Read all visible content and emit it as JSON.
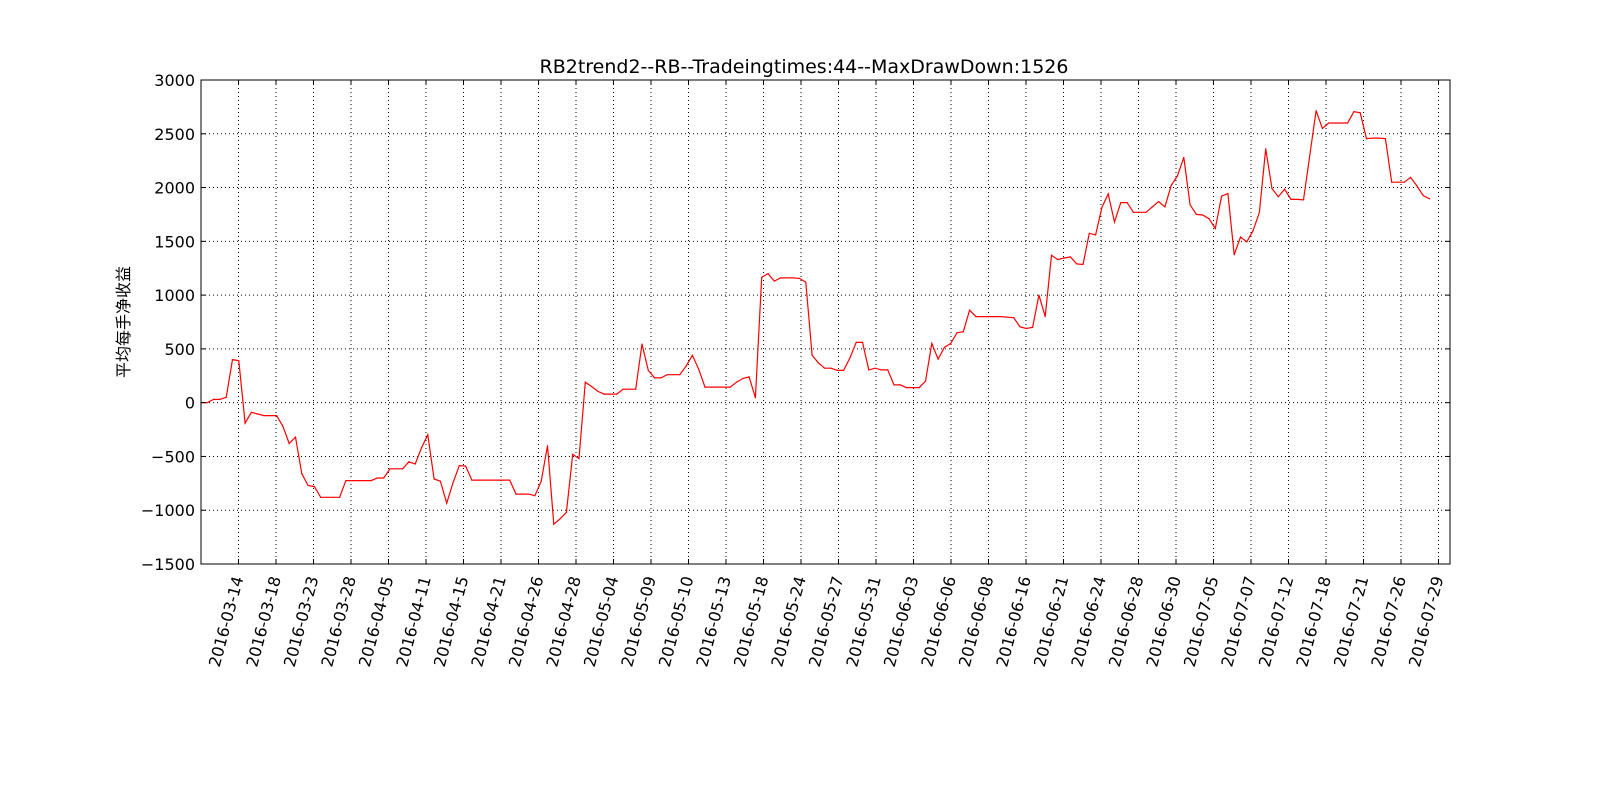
{
  "chart_data": {
    "type": "line",
    "title": "RB2trend2--RB--Tradeingtimes:44--MaxDrawDown:1526",
    "xlabel": "",
    "ylabel": "平均每手净收益",
    "ylim": [
      -1500,
      3000
    ],
    "yticks": [
      -1500,
      -1000,
      -500,
      0,
      500,
      1000,
      1500,
      2000,
      2500,
      3000
    ],
    "xtick_labels": [
      "2016-03-14",
      "2016-03-18",
      "2016-03-23",
      "2016-03-28",
      "2016-04-05",
      "2016-04-11",
      "2016-04-15",
      "2016-04-21",
      "2016-04-26",
      "2016-04-28",
      "2016-05-04",
      "2016-05-09",
      "2016-05-10",
      "2016-05-13",
      "2016-05-18",
      "2016-05-24",
      "2016-05-27",
      "2016-05-31",
      "2016-06-03",
      "2016-06-06",
      "2016-06-08",
      "2016-06-16",
      "2016-06-21",
      "2016-06-24",
      "2016-06-28",
      "2016-06-30",
      "2016-07-05",
      "2016-07-07",
      "2016-07-12",
      "2016-07-18",
      "2016-07-21",
      "2016-07-26",
      "2016-07-29"
    ],
    "grid": true,
    "line_color": "#ff0000",
    "series": [
      {
        "values": [
          0,
          0,
          30,
          30,
          50,
          400,
          390,
          -190,
          -90,
          -105,
          -120,
          -120,
          -120,
          -220,
          -380,
          -320,
          -660,
          -770,
          -780,
          -880,
          -880,
          -880,
          -880,
          -725,
          -725,
          -725,
          -725,
          -725,
          -700,
          -700,
          -615,
          -615,
          -615,
          -550,
          -570,
          -420,
          -300,
          -710,
          -730,
          -935,
          -745,
          -585,
          -590,
          -720,
          -720,
          -720,
          -720,
          -720,
          -720,
          -720,
          -850,
          -850,
          -850,
          -865,
          -730,
          -400,
          -1130,
          -1080,
          -1020,
          -480,
          -520,
          190,
          150,
          105,
          80,
          80,
          80,
          125,
          125,
          125,
          545,
          300,
          230,
          230,
          260,
          260,
          260,
          340,
          440,
          310,
          145,
          145,
          145,
          145,
          145,
          190,
          225,
          240,
          45,
          1165,
          1200,
          1130,
          1160,
          1160,
          1160,
          1155,
          1120,
          440,
          370,
          320,
          320,
          300,
          300,
          415,
          560,
          560,
          305,
          320,
          305,
          305,
          165,
          165,
          140,
          140,
          140,
          200,
          550,
          405,
          515,
          550,
          650,
          660,
          860,
          800,
          800,
          800,
          800,
          800,
          795,
          790,
          705,
          690,
          700,
          1000,
          800,
          1370,
          1330,
          1345,
          1355,
          1290,
          1285,
          1575,
          1560,
          1815,
          1940,
          1680,
          1860,
          1860,
          1770,
          1770,
          1770,
          1820,
          1870,
          1820,
          2020,
          2110,
          2280,
          1840,
          1750,
          1745,
          1710,
          1620,
          1920,
          1945,
          1375,
          1540,
          1495,
          1600,
          1770,
          2360,
          1990,
          1915,
          1985,
          1890,
          1890,
          1885,
          2300,
          2715,
          2550,
          2600,
          2600,
          2600,
          2600,
          2705,
          2695,
          2455,
          2460,
          2460,
          2455,
          2050,
          2050,
          2050,
          2095,
          2015,
          1925,
          1895
        ]
      }
    ]
  }
}
